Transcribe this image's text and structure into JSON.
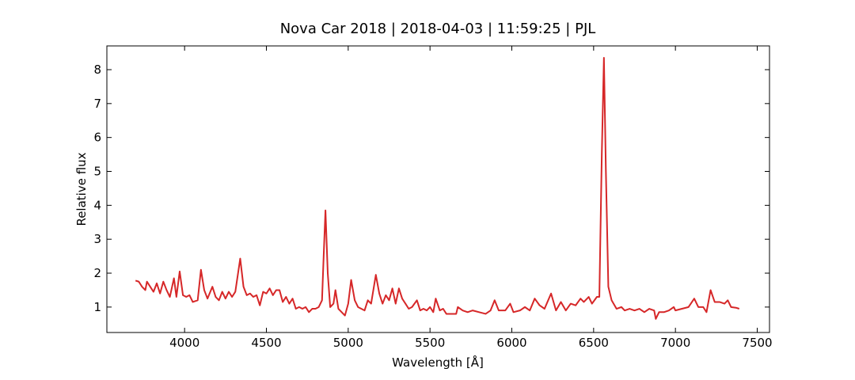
{
  "chart_data": {
    "type": "line",
    "title": "Nova Car 2018 | 2018-04-03 | 11:59:25 | PJL",
    "xlabel": "Wavelength [Å]",
    "ylabel": "Relative flux",
    "xlim": [
      3525,
      7575
    ],
    "ylim": [
      0.25,
      8.7
    ],
    "xticks": [
      4000,
      4500,
      5000,
      5500,
      6000,
      6500,
      7000,
      7500
    ],
    "yticks": [
      1,
      2,
      3,
      4,
      5,
      6,
      7,
      8
    ],
    "tick_direction": "in",
    "grid": false,
    "x": [
      3700,
      3720,
      3740,
      3760,
      3770,
      3790,
      3810,
      3830,
      3850,
      3870,
      3890,
      3910,
      3935,
      3950,
      3970,
      3990,
      4010,
      4030,
      4050,
      4080,
      4100,
      4120,
      4140,
      4170,
      4190,
      4210,
      4230,
      4250,
      4270,
      4290,
      4310,
      4340,
      4360,
      4380,
      4400,
      4420,
      4440,
      4460,
      4480,
      4500,
      4520,
      4540,
      4560,
      4580,
      4600,
      4620,
      4640,
      4660,
      4680,
      4700,
      4720,
      4740,
      4760,
      4780,
      4800,
      4820,
      4840,
      4850,
      4861,
      4875,
      4890,
      4910,
      4922,
      4940,
      4960,
      4980,
      5000,
      5018,
      5040,
      5060,
      5080,
      5100,
      5120,
      5140,
      5169,
      5190,
      5210,
      5230,
      5250,
      5270,
      5290,
      5310,
      5330,
      5350,
      5370,
      5390,
      5420,
      5440,
      5460,
      5480,
      5500,
      5520,
      5535,
      5560,
      5580,
      5600,
      5630,
      5660,
      5670,
      5700,
      5730,
      5760,
      5800,
      5840,
      5870,
      5895,
      5920,
      5960,
      5990,
      6010,
      6050,
      6080,
      6110,
      6140,
      6170,
      6200,
      6240,
      6270,
      6300,
      6330,
      6360,
      6390,
      6420,
      6440,
      6470,
      6490,
      6520,
      6535,
      6550,
      6563,
      6575,
      6590,
      6610,
      6640,
      6670,
      6690,
      6720,
      6750,
      6780,
      6810,
      6840,
      6870,
      6880,
      6900,
      6930,
      6960,
      6990,
      7000,
      7040,
      7080,
      7115,
      7140,
      7170,
      7190,
      7215,
      7240,
      7270,
      7300,
      7320,
      7340,
      7370,
      7390
    ],
    "series": [
      {
        "name": "Nova Car 2018",
        "color": "#d62728",
        "values": [
          1.78,
          1.75,
          1.6,
          1.5,
          1.75,
          1.6,
          1.45,
          1.7,
          1.4,
          1.75,
          1.5,
          1.3,
          1.85,
          1.3,
          2.05,
          1.35,
          1.3,
          1.35,
          1.15,
          1.2,
          2.1,
          1.5,
          1.25,
          1.6,
          1.3,
          1.2,
          1.45,
          1.25,
          1.45,
          1.3,
          1.45,
          2.43,
          1.6,
          1.35,
          1.4,
          1.3,
          1.35,
          1.05,
          1.45,
          1.4,
          1.55,
          1.35,
          1.5,
          1.5,
          1.15,
          1.3,
          1.1,
          1.25,
          0.95,
          1.0,
          0.95,
          1.0,
          0.85,
          0.95,
          0.95,
          1.0,
          1.2,
          2.5,
          3.85,
          2.0,
          1.0,
          1.1,
          1.5,
          0.95,
          0.85,
          0.75,
          1.1,
          1.8,
          1.2,
          1.0,
          0.95,
          0.9,
          1.2,
          1.1,
          1.95,
          1.4,
          1.1,
          1.35,
          1.2,
          1.55,
          1.1,
          1.55,
          1.25,
          1.1,
          0.95,
          1.0,
          1.2,
          0.9,
          0.95,
          0.9,
          1.0,
          0.85,
          1.25,
          0.9,
          0.95,
          0.8,
          0.8,
          0.8,
          1.0,
          0.9,
          0.85,
          0.9,
          0.85,
          0.8,
          0.9,
          1.2,
          0.9,
          0.9,
          1.1,
          0.85,
          0.9,
          1.0,
          0.9,
          1.25,
          1.05,
          0.95,
          1.4,
          0.9,
          1.15,
          0.9,
          1.1,
          1.05,
          1.25,
          1.15,
          1.3,
          1.1,
          1.3,
          1.3,
          5.5,
          8.35,
          5.0,
          1.6,
          1.2,
          0.95,
          1.0,
          0.9,
          0.95,
          0.9,
          0.95,
          0.85,
          0.95,
          0.9,
          0.65,
          0.85,
          0.85,
          0.9,
          1.0,
          0.9,
          0.95,
          1.0,
          1.25,
          1.0,
          1.0,
          0.85,
          1.5,
          1.15,
          1.15,
          1.1,
          1.2,
          1.0,
          0.98,
          0.95
        ]
      }
    ]
  }
}
